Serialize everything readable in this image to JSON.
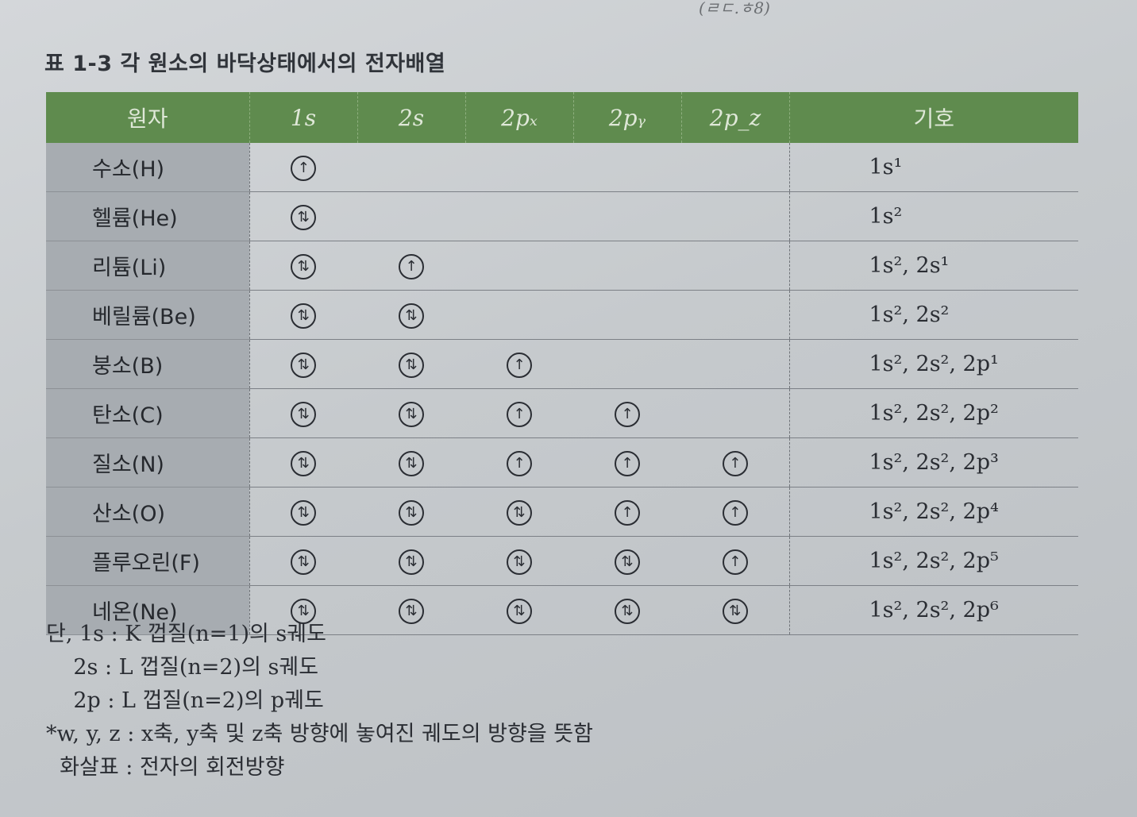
{
  "caption": "표 1-3  각 원소의 바닥상태에서의 전자배열",
  "handwriting": "(ㄹㄷ.ㅎ8)",
  "table": {
    "headers": [
      "원자",
      "1s",
      "2s",
      "2pₓ",
      "2pᵧ",
      "2p_z",
      "기호"
    ],
    "rows": [
      {
        "element": "수소(H)",
        "orbitals": [
          "↑",
          "",
          "",
          "",
          ""
        ],
        "symbol": "1s¹"
      },
      {
        "element": "헬륨(He)",
        "orbitals": [
          "⇅",
          "",
          "",
          "",
          ""
        ],
        "symbol": "1s²"
      },
      {
        "element": "리튬(Li)",
        "orbitals": [
          "⇅",
          "↑",
          "",
          "",
          ""
        ],
        "symbol": "1s², 2s¹"
      },
      {
        "element": "베릴륨(Be)",
        "orbitals": [
          "⇅",
          "⇅",
          "",
          "",
          ""
        ],
        "symbol": "1s², 2s²"
      },
      {
        "element": "붕소(B)",
        "orbitals": [
          "⇅",
          "⇅",
          "↑",
          "",
          ""
        ],
        "symbol": "1s², 2s², 2p¹"
      },
      {
        "element": "탄소(C)",
        "orbitals": [
          "⇅",
          "⇅",
          "↑",
          "↑",
          ""
        ],
        "symbol": "1s², 2s², 2p²"
      },
      {
        "element": "질소(N)",
        "orbitals": [
          "⇅",
          "⇅",
          "↑",
          "↑",
          "↑"
        ],
        "symbol": "1s², 2s², 2p³"
      },
      {
        "element": "산소(O)",
        "orbitals": [
          "⇅",
          "⇅",
          "⇅",
          "↑",
          "↑"
        ],
        "symbol": "1s², 2s², 2p⁴"
      },
      {
        "element": "플루오린(F)",
        "orbitals": [
          "⇅",
          "⇅",
          "⇅",
          "⇅",
          "↑"
        ],
        "symbol": "1s², 2s², 2p⁵"
      },
      {
        "element": "네온(Ne)",
        "orbitals": [
          "⇅",
          "⇅",
          "⇅",
          "⇅",
          "⇅"
        ],
        "symbol": "1s², 2s², 2p⁶"
      }
    ]
  },
  "notes": [
    "단, 1s : K 껍질(n=1)의 s궤도",
    "    2s : L 껍질(n=2)의 s궤도",
    "    2p : L 껍질(n=2)의 p궤도",
    "*w, y, z : x축, y축 및 z축 방향에 놓여진 궤도의 방향을 뜻함",
    "  화살표 : 전자의 회전방향"
  ]
}
